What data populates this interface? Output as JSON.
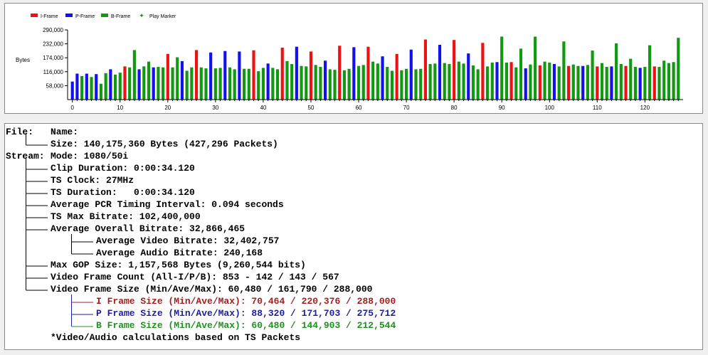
{
  "chart_data": {
    "type": "bar",
    "ylabel": "Bytes",
    "yticks": [
      "58,000",
      "116,000",
      "174,000",
      "232,000",
      "290,000"
    ],
    "ytick_values": [
      58000,
      116000,
      174000,
      232000,
      290000
    ],
    "ylim": [
      0,
      290000
    ],
    "xlim": [
      -1,
      128
    ],
    "xticks": [
      0,
      10,
      20,
      30,
      40,
      50,
      60,
      70,
      80,
      90,
      100,
      110,
      120
    ],
    "grid": false,
    "legend_placement": "top-left",
    "colors": {
      "I": "#ee1111",
      "P": "#1111ee",
      "B": "#119911",
      "marker": "#119911"
    },
    "legend": [
      {
        "key": "I",
        "label": "I-Frame"
      },
      {
        "key": "P",
        "label": "P-Frame"
      },
      {
        "key": "B",
        "label": "B-Frame"
      },
      {
        "key": "marker",
        "label": "Play Marker"
      }
    ],
    "frame_types": "PPBPBPBBPBBIBBPBBPBBIBBPBBIBBPBBPBBPBBIBBPBBIBBPBBIBBPBBIBBPBBIBBPBBIBBPBBIBBPBBIBBPBBIBBPBBIBBPBBIBBPBBIBBPBBIBBPBBIBBPBBI",
    "values": [
      75000,
      108000,
      98000,
      108000,
      94000,
      106000,
      66000,
      110000,
      126000,
      104000,
      112000,
      138000,
      134000,
      206000,
      126000,
      138000,
      158000,
      134000,
      136000,
      134000,
      190000,
      134000,
      176000,
      160000,
      120000,
      134000,
      206000,
      134000,
      130000,
      196000,
      130000,
      132000,
      202000,
      134000,
      126000,
      200000,
      128000,
      128000,
      205000,
      118000,
      132000,
      150000,
      132000,
      126000,
      216000,
      160000,
      148000,
      220000,
      140000,
      138000,
      200000,
      144000,
      136000,
      162000,
      126000,
      124000,
      224000,
      122000,
      128000,
      218000,
      140000,
      144000,
      220000,
      158000,
      150000,
      180000,
      136000,
      120000,
      190000,
      122000,
      128000,
      208000,
      126000,
      128000,
      250000,
      148000,
      150000,
      228000,
      152000,
      148000,
      248000,
      158000,
      150000,
      192000,
      142000,
      126000,
      236000,
      138000,
      154000,
      156000,
      262000,
      154000,
      156000,
      134000,
      212000,
      130000,
      146000,
      262000,
      142000,
      158000,
      154000,
      148000,
      138000,
      242000,
      140000,
      146000,
      140000,
      140000,
      144000,
      204000,
      138000,
      152000,
      136000,
      138000,
      234000,
      148000,
      140000,
      170000,
      136000,
      132000,
      136000,
      226000,
      138000,
      136000,
      162000,
      152000,
      156000,
      257000
    ]
  },
  "info": {
    "rows": [
      {
        "label": "File:",
        "text": "Name:"
      },
      {
        "label": "",
        "text": "Size: 140,175,360 Bytes (427,296 Packets)"
      },
      {
        "label": "Stream:",
        "text": "Mode: 1080/50i"
      },
      {
        "label": "",
        "text": "Clip Duration: 0:00:34.120"
      },
      {
        "label": "",
        "text": "TS Clock: 27MHz"
      },
      {
        "label": "",
        "text": "TS Duration:   0:00:34.120"
      },
      {
        "label": "",
        "text": "Average PCR Timing Interval: 0.094 seconds"
      },
      {
        "label": "",
        "text": "TS Max Bitrate: 102,400,000"
      },
      {
        "label": "",
        "text": "Average Overall Bitrate: 32,866,465"
      },
      {
        "label": "",
        "text": "Average Video Bitrate: 32,402,757"
      },
      {
        "label": "",
        "text": "Average Audio Bitrate: 240,168"
      },
      {
        "label": "",
        "text": "Max GOP Size: 1,157,568 Bytes (9,260,544 bits)"
      },
      {
        "label": "",
        "text": "Video Frame Count (All-I/P/B): 853 - 142 / 143 / 567"
      },
      {
        "label": "",
        "text": "Video Frame Size (Min/Ave/Max): 60,480 / 161,790 / 288,000"
      },
      {
        "label": "",
        "text": "I Frame Size (Min/Ave/Max): 70,464 / 220,376 / 288,000",
        "color": "#a02020"
      },
      {
        "label": "",
        "text": "P Frame Size (Min/Ave/Max): 88,320 / 171,703 / 275,712",
        "color": "#20209a"
      },
      {
        "label": "",
        "text": "B Frame Size (Min/Ave/Max): 60,480 / 144,903 / 212,544",
        "color": "#209020"
      },
      {
        "label": "",
        "text": "*Video/Audio calculations based on TS Packets"
      }
    ],
    "colors": {
      "I": "#a02020",
      "P": "#20209a",
      "B": "#209020"
    }
  }
}
